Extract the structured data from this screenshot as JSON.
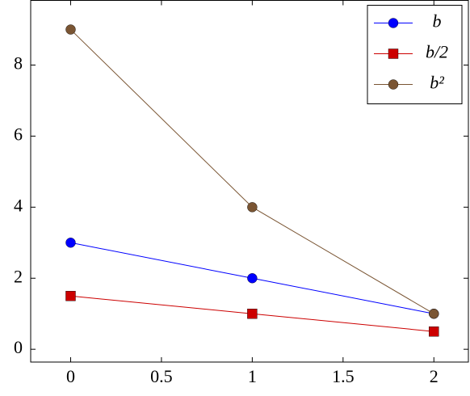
{
  "chart_data": {
    "type": "line",
    "x": [
      0,
      1,
      2
    ],
    "series": [
      {
        "name": "b",
        "color": "#0000ff",
        "marker": "circle",
        "values": [
          3,
          2,
          1
        ]
      },
      {
        "name": "b/2",
        "color": "#cc0000",
        "marker": "square",
        "values": [
          1.5,
          1,
          0.5
        ]
      },
      {
        "name": "b²",
        "color": "#7a5533",
        "marker": "circle",
        "values": [
          9,
          4,
          1
        ]
      }
    ],
    "xlim": [
      -0.22,
      2.19
    ],
    "ylim": [
      -0.36,
      9.82
    ],
    "xticks": [
      0,
      0.5,
      1,
      1.5,
      2
    ],
    "yticks": [
      0,
      2,
      4,
      6,
      8
    ],
    "legend": "upper right"
  }
}
